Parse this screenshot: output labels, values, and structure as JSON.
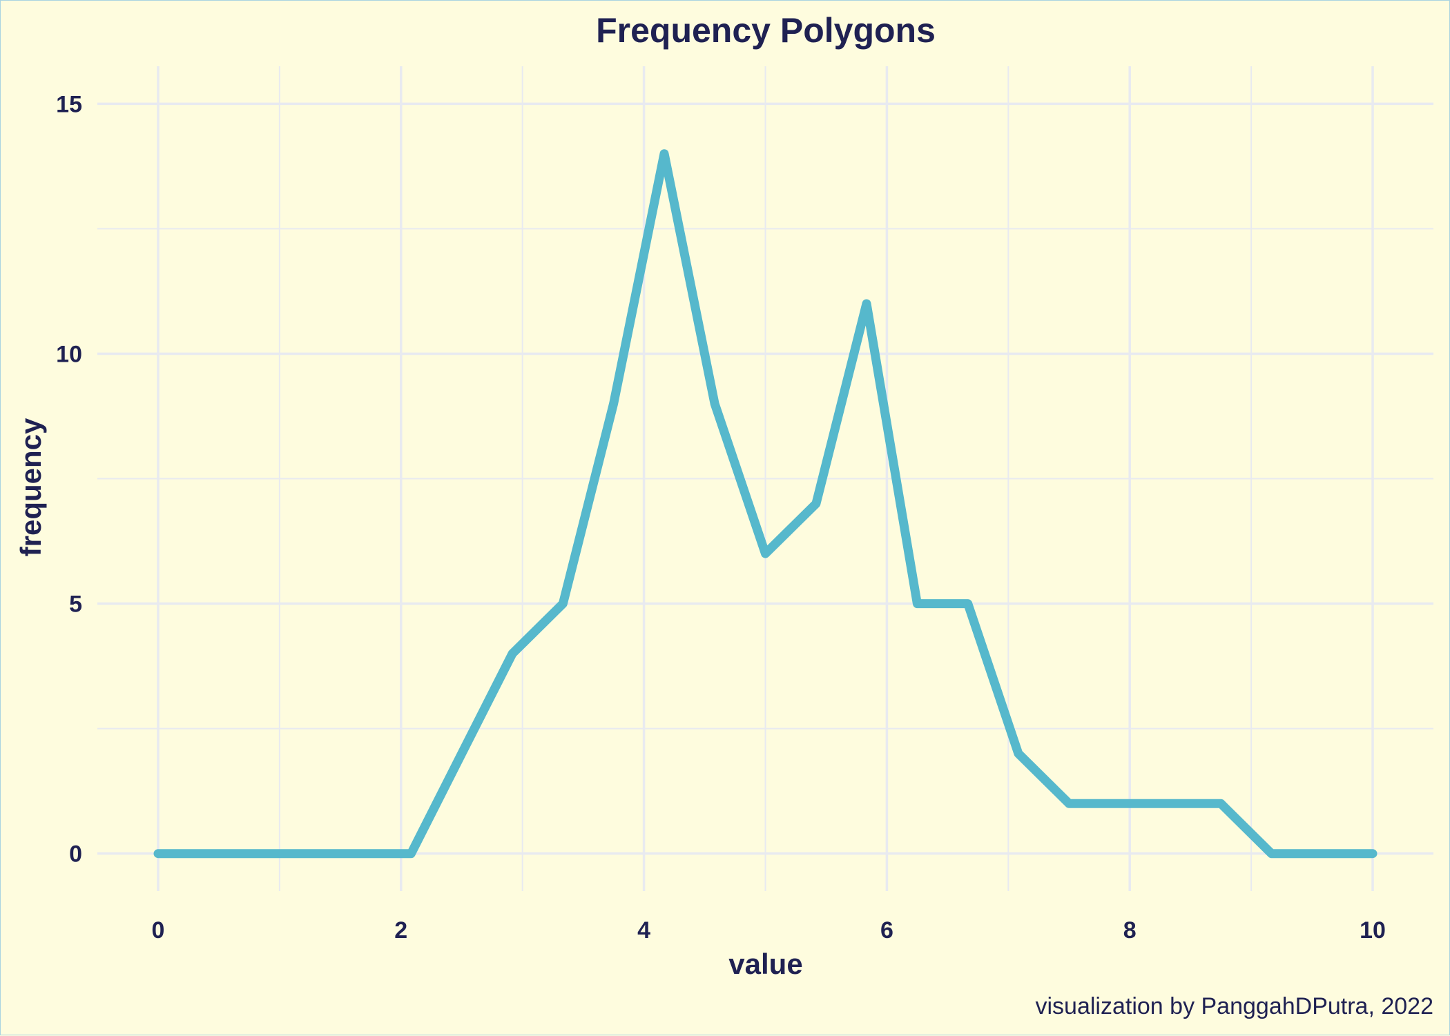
{
  "colors": {
    "background": "#fefcde",
    "border": "#a9d3e0",
    "grid": "#e8eaf0",
    "line": "#56b8cc",
    "text": "#1f2152"
  },
  "chart_data": {
    "type": "line",
    "title": "Frequency Polygons",
    "xlabel": "value",
    "ylabel": "frequency",
    "caption": "visualization by PanggahDPutra, 2022",
    "xlim": [
      -0.5,
      10.5
    ],
    "ylim": [
      -0.75,
      15.75
    ],
    "x_ticks": [
      0,
      2,
      4,
      6,
      8,
      10
    ],
    "y_ticks": [
      0,
      5,
      10,
      15
    ],
    "x_minor_ticks": [
      1,
      3,
      5,
      7,
      9
    ],
    "y_minor_ticks": [
      2.5,
      7.5,
      12.5
    ],
    "grid": true,
    "legend": "none",
    "series": [
      {
        "x": [
          0,
          0.417,
          0.833,
          1.25,
          1.667,
          2.083,
          2.5,
          2.917,
          3.333,
          3.75,
          4.167,
          4.583,
          5.0,
          5.417,
          5.833,
          6.25,
          6.667,
          7.083,
          7.5,
          7.917,
          8.333,
          8.75,
          9.167,
          9.583,
          10
        ],
        "values": [
          0,
          0,
          0,
          0,
          0,
          0,
          2,
          4,
          5,
          9,
          14,
          9,
          6,
          7,
          11,
          5,
          5,
          2,
          1,
          1,
          1,
          1,
          0,
          0,
          0
        ]
      }
    ]
  }
}
